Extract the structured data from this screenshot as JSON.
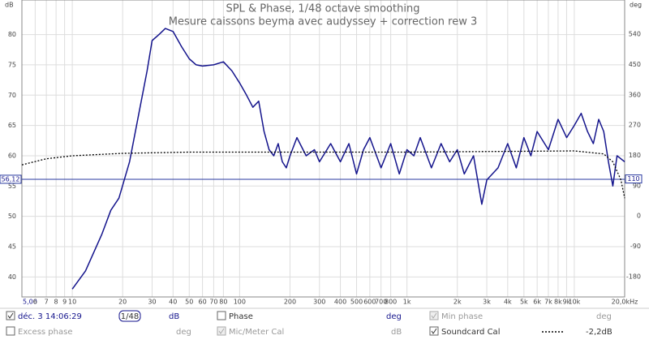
{
  "chart_data": {
    "type": "line",
    "title": "SPL & Phase, 1/48 octave smoothing",
    "subtitle": "Mesure caissons beyma avec audyssey + correction rew 3",
    "y_label": "dB",
    "y2_label": "deg",
    "log_x": true,
    "grid": true,
    "xlim": [
      5,
      20000
    ],
    "xticks": [
      {
        "value": 5,
        "label": "5,00"
      },
      6,
      7,
      8,
      9,
      10,
      20,
      30,
      40,
      50,
      60,
      70,
      80,
      100,
      200,
      300,
      400,
      500,
      600,
      700,
      800,
      {
        "value": 1000,
        "label": "1k"
      },
      {
        "value": 2000,
        "label": "2k"
      },
      {
        "value": 3000,
        "label": "3k"
      },
      {
        "value": 4000,
        "label": "4k"
      },
      {
        "value": 5000,
        "label": "5k"
      },
      {
        "value": 6000,
        "label": "6k"
      },
      {
        "value": 7000,
        "label": "7k"
      },
      {
        "value": 8000,
        "label": "8k"
      },
      {
        "value": 9000,
        "label": "9k"
      },
      {
        "value": 10000,
        "label": "10k"
      },
      {
        "value": 20000,
        "label": "20,0kHz"
      }
    ],
    "ylim": [
      36.7,
      85.7
    ],
    "yticks": [
      40,
      45,
      50,
      55,
      60,
      65,
      70,
      75,
      80
    ],
    "y2lim": [
      -240.4,
      641.5
    ],
    "y2ticks": [
      -180,
      -90,
      0,
      90,
      180,
      270,
      360,
      450,
      540
    ],
    "cursor": {
      "value": 56.12,
      "label": "56,12",
      "y2_value": 110
    },
    "series": [
      {
        "name": "déc. 3 14:06:29",
        "color": "#14148c",
        "style": "solid",
        "x": [
          10,
          12,
          15,
          17,
          19,
          22,
          25,
          28,
          30,
          33,
          36,
          40,
          45,
          50,
          55,
          60,
          70,
          80,
          90,
          100,
          110,
          120,
          130,
          140,
          150,
          160,
          170,
          180,
          190,
          200,
          220,
          250,
          280,
          300,
          350,
          400,
          450,
          500,
          550,
          600,
          700,
          800,
          900,
          1000,
          1100,
          1200,
          1400,
          1600,
          1800,
          2000,
          2200,
          2500,
          2800,
          3000,
          3500,
          4000,
          4500,
          5000,
          5500,
          6000,
          7000,
          8000,
          9000,
          10000,
          11000,
          12000,
          13000,
          14000,
          15000,
          16000,
          17000,
          18000,
          20000
        ],
        "values": [
          38,
          41,
          47,
          51,
          53,
          59,
          67,
          74,
          79,
          80,
          81,
          80.5,
          78,
          76,
          75,
          74.8,
          75,
          75.5,
          74,
          72,
          70,
          68,
          69,
          64,
          61,
          60,
          62,
          59,
          58,
          60,
          63,
          60,
          61,
          59,
          62,
          59,
          62,
          57,
          61,
          63,
          58,
          62,
          57,
          61,
          60,
          63,
          58,
          62,
          59,
          61,
          57,
          60,
          52,
          56,
          58,
          62,
          58,
          63,
          60,
          64,
          61,
          66,
          63,
          65,
          67,
          64,
          62,
          66,
          64,
          59,
          55,
          60,
          59
        ]
      },
      {
        "name": "Soundcard Cal",
        "color": "#000000",
        "style": "dotted",
        "x": [
          5,
          7,
          10,
          20,
          50,
          1000,
          10000,
          15000,
          17000,
          19000,
          20000
        ],
        "values": [
          58.5,
          59.5,
          60,
          60.4,
          60.6,
          60.6,
          60.8,
          60.3,
          59,
          56,
          53
        ]
      }
    ]
  },
  "panel": {
    "smoothing": "1/48",
    "spl_unit": "dB",
    "phase": "Phase",
    "phase_unit": "deg",
    "min_phase": "Min phase",
    "min_phase_unit": "deg",
    "excess_phase": "Excess phase",
    "excess_phase_unit": "deg",
    "mic_cal": "Mic/Meter Cal",
    "mic_cal_unit": "dB",
    "soundcard_offset": "-2,2dB"
  }
}
